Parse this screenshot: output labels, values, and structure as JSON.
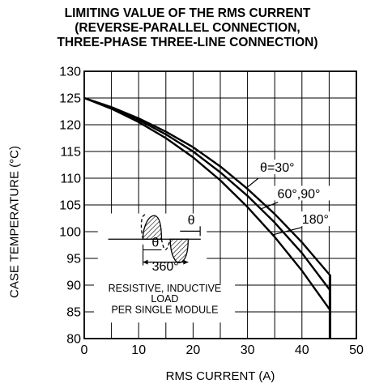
{
  "chart_data": {
    "type": "line",
    "title": [
      "LIMITING VALUE OF THE RMS CURRENT",
      "(REVERSE-PARALLEL CONNECTION,",
      "THREE-PHASE THREE-LINE CONNECTION)"
    ],
    "xlabel": "RMS CURRENT (A)",
    "ylabel": "CASE TEMPERATURE (°C)",
    "xlim": [
      0,
      50
    ],
    "ylim": [
      80,
      130
    ],
    "xticks": [
      "0",
      "10",
      "20",
      "30",
      "40",
      "50"
    ],
    "yticks": [
      "130",
      "125",
      "120",
      "115",
      "110",
      "105",
      "100",
      "95",
      "90",
      "85",
      "80"
    ],
    "grid": true,
    "series": [
      {
        "name": "θ=30°",
        "x": [
          0,
          5,
          10,
          15,
          20,
          25,
          30,
          35,
          40,
          45.2,
          45.2
        ],
        "y": [
          125,
          123.3,
          121.2,
          118.7,
          115.8,
          112.2,
          108.0,
          103.3,
          98.0,
          91.8,
          80
        ]
      },
      {
        "name": "60°,90°",
        "x": [
          0,
          5,
          10,
          15,
          20,
          25,
          30,
          35,
          40,
          45.2,
          45.2
        ],
        "y": [
          125,
          123.2,
          120.9,
          118.2,
          115.0,
          111.1,
          106.7,
          101.7,
          96.0,
          89.0,
          80
        ]
      },
      {
        "name": "180°",
        "x": [
          0,
          5,
          10,
          15,
          20,
          25,
          30,
          35,
          40,
          45.2,
          45.2
        ],
        "y": [
          125,
          123.0,
          120.5,
          117.5,
          113.9,
          109.6,
          104.6,
          99.0,
          92.7,
          85.3,
          80
        ]
      }
    ],
    "annotations": {
      "inset_theta_top": "θ",
      "inset_theta_mid": "θ",
      "inset_period": "360°",
      "note": [
        "RESISTIVE, INDUCTIVE",
        "LOAD",
        "PER SINGLE MODULE"
      ]
    }
  }
}
